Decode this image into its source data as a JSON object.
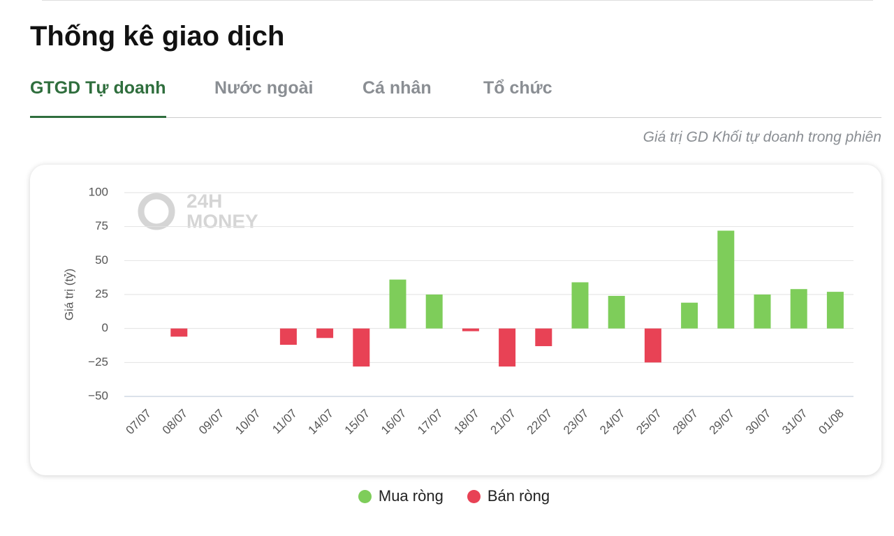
{
  "page_title": "Thống kê giao dịch",
  "tabs": [
    "GTGD Tự doanh",
    "Nước ngoài",
    "Cá nhân",
    "Tổ chức"
  ],
  "subtitle": "Giá trị GD Khối tự doanh trong phiên",
  "watermark": [
    "24H",
    "MONEY"
  ],
  "chart_data": {
    "type": "bar",
    "y_label": "Giá trị (tỷ)",
    "categories": [
      "07/07",
      "08/07",
      "09/07",
      "10/07",
      "11/07",
      "14/07",
      "15/07",
      "16/07",
      "17/07",
      "18/07",
      "21/07",
      "22/07",
      "23/07",
      "24/07",
      "25/07",
      "28/07",
      "29/07",
      "30/07",
      "31/07",
      "01/08"
    ],
    "series": [
      {
        "name": "Mua ròng",
        "color": "#7ecd5a",
        "values": [
          0,
          null,
          0,
          0,
          null,
          null,
          null,
          36,
          25,
          null,
          null,
          null,
          34,
          24,
          null,
          19,
          72,
          25,
          29,
          27
        ]
      },
      {
        "name": "Bán ròng",
        "color": "#e84255",
        "values": [
          null,
          -6,
          null,
          null,
          -12,
          -7,
          -28,
          null,
          null,
          -2,
          -28,
          -13,
          null,
          null,
          -25,
          null,
          null,
          null,
          null,
          null
        ]
      }
    ],
    "ylim": [
      -50,
      100
    ],
    "yticks": [
      {
        "value": -50,
        "label": "−50"
      },
      {
        "value": -25,
        "label": "−25"
      },
      0,
      25,
      50,
      75,
      100
    ],
    "grid": true
  }
}
